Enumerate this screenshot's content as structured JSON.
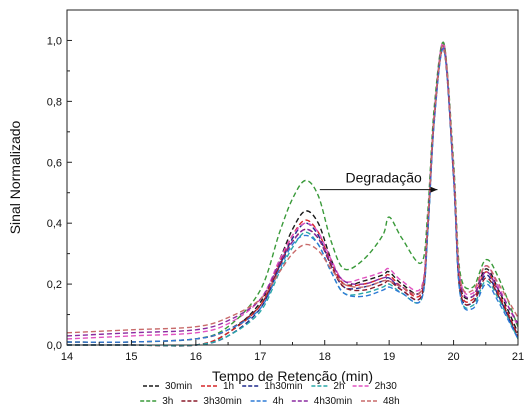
{
  "chart_data": {
    "type": "line",
    "title": "",
    "xlabel": "Tempo de Retenção (min)",
    "ylabel": "Sinal Normalizado",
    "xlim": [
      14,
      21
    ],
    "ylim": [
      0,
      1.1
    ],
    "x_ticks": [
      14,
      15,
      16,
      17,
      18,
      19,
      20,
      21
    ],
    "x_tick_labels": [
      "14",
      "15",
      "16",
      "17",
      "18",
      "19",
      "20",
      "21"
    ],
    "y_ticks": [
      0,
      0.2,
      0.4,
      0.6,
      0.8,
      1.0
    ],
    "y_tick_labels": [
      "0,0",
      "0,2",
      "0,4",
      "0,6",
      "0,8",
      "1,0"
    ],
    "grid": false,
    "legend_position": "bottom",
    "annotation": {
      "text": "Degradação",
      "arrow_from": [
        18.7,
        0.51
      ],
      "arrow_to": [
        19.75,
        0.51
      ]
    },
    "x": [
      14.0,
      15.0,
      16.0,
      16.5,
      17.0,
      17.3,
      17.5,
      17.7,
      17.9,
      18.1,
      18.3,
      18.6,
      18.9,
      19.0,
      19.2,
      19.5,
      19.6,
      19.7,
      19.85,
      20.0,
      20.1,
      20.3,
      20.5,
      20.7,
      21.0
    ],
    "series": [
      {
        "name": "30min",
        "color": "#1a1a1a",
        "values": [
          0.0,
          0.0,
          0.0,
          0.04,
          0.14,
          0.28,
          0.38,
          0.44,
          0.4,
          0.28,
          0.2,
          0.21,
          0.23,
          0.24,
          0.2,
          0.18,
          0.4,
          0.75,
          0.99,
          0.55,
          0.2,
          0.16,
          0.25,
          0.18,
          0.04
        ]
      },
      {
        "name": "1h",
        "color": "#d62728",
        "values": [
          0.0,
          0.0,
          0.0,
          0.04,
          0.13,
          0.27,
          0.36,
          0.41,
          0.37,
          0.27,
          0.2,
          0.2,
          0.22,
          0.23,
          0.19,
          0.17,
          0.39,
          0.75,
          0.98,
          0.56,
          0.19,
          0.15,
          0.24,
          0.17,
          0.03
        ]
      },
      {
        "name": "1h30min",
        "color": "#1f2a8c",
        "values": [
          0.0,
          0.0,
          0.0,
          0.03,
          0.12,
          0.26,
          0.35,
          0.4,
          0.36,
          0.26,
          0.19,
          0.19,
          0.21,
          0.22,
          0.18,
          0.16,
          0.38,
          0.74,
          0.98,
          0.55,
          0.18,
          0.14,
          0.23,
          0.16,
          0.02
        ]
      },
      {
        "name": "2h",
        "color": "#2aa8a8",
        "values": [
          0.0,
          0.0,
          0.0,
          0.03,
          0.11,
          0.24,
          0.32,
          0.37,
          0.33,
          0.24,
          0.17,
          0.17,
          0.19,
          0.2,
          0.17,
          0.15,
          0.37,
          0.74,
          0.97,
          0.55,
          0.17,
          0.13,
          0.21,
          0.15,
          0.02
        ]
      },
      {
        "name": "2h30",
        "color": "#e052c0",
        "values": [
          0.02,
          0.03,
          0.04,
          0.07,
          0.15,
          0.28,
          0.36,
          0.4,
          0.37,
          0.28,
          0.21,
          0.22,
          0.24,
          0.25,
          0.21,
          0.19,
          0.41,
          0.76,
          0.99,
          0.57,
          0.22,
          0.17,
          0.26,
          0.19,
          0.06
        ]
      },
      {
        "name": "3h",
        "color": "#3a9a3a",
        "values": [
          0.01,
          0.01,
          0.02,
          0.06,
          0.18,
          0.37,
          0.48,
          0.54,
          0.49,
          0.34,
          0.25,
          0.28,
          0.36,
          0.42,
          0.35,
          0.27,
          0.44,
          0.78,
          0.99,
          0.6,
          0.24,
          0.19,
          0.28,
          0.22,
          0.06
        ]
      },
      {
        "name": "3h30min",
        "color": "#8a1a2a",
        "values": [
          0.01,
          0.01,
          0.02,
          0.05,
          0.13,
          0.26,
          0.34,
          0.38,
          0.35,
          0.26,
          0.19,
          0.18,
          0.2,
          0.21,
          0.18,
          0.16,
          0.38,
          0.74,
          0.97,
          0.55,
          0.18,
          0.14,
          0.22,
          0.16,
          0.03
        ]
      },
      {
        "name": "4h",
        "color": "#2e7bd6",
        "values": [
          0.01,
          0.01,
          0.02,
          0.05,
          0.12,
          0.25,
          0.33,
          0.36,
          0.33,
          0.24,
          0.17,
          0.16,
          0.18,
          0.19,
          0.17,
          0.15,
          0.37,
          0.73,
          0.97,
          0.55,
          0.17,
          0.12,
          0.2,
          0.14,
          0.02
        ]
      },
      {
        "name": "4h30min",
        "color": "#8a2aa0",
        "values": [
          0.03,
          0.04,
          0.05,
          0.08,
          0.15,
          0.27,
          0.34,
          0.38,
          0.35,
          0.27,
          0.21,
          0.2,
          0.22,
          0.22,
          0.19,
          0.18,
          0.4,
          0.75,
          0.98,
          0.57,
          0.21,
          0.16,
          0.24,
          0.18,
          0.07
        ]
      },
      {
        "name": "48h",
        "color": "#c86a6a",
        "values": [
          0.04,
          0.05,
          0.06,
          0.09,
          0.15,
          0.24,
          0.3,
          0.33,
          0.31,
          0.25,
          0.2,
          0.19,
          0.21,
          0.21,
          0.19,
          0.18,
          0.4,
          0.75,
          0.98,
          0.58,
          0.22,
          0.18,
          0.26,
          0.2,
          0.09
        ]
      }
    ]
  }
}
